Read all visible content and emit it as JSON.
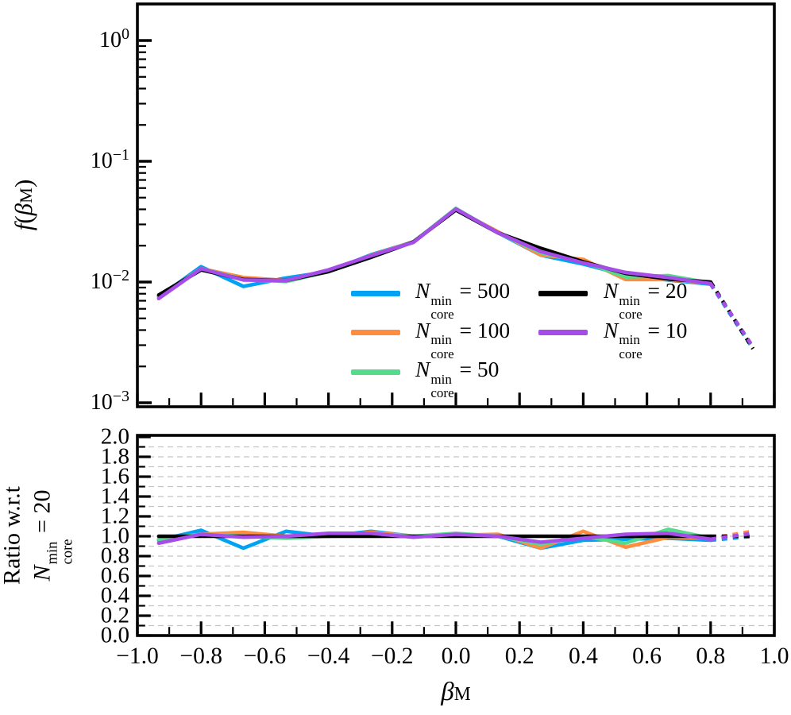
{
  "accent_colors": {
    "cyan": "#00A2F3",
    "orange": "#FF8D3F",
    "green": "#55DB8B",
    "black": "#000000",
    "purple": "#A64CE8",
    "grid": "#c4c4c4"
  },
  "labels": {
    "top_ylabel": {
      "f": "f",
      "open": "(",
      "beta": "β",
      "sub": "M",
      "close": ")"
    },
    "xlabel": {
      "beta": "β",
      "sub": "M"
    },
    "ratio_line1": "Ratio w.r.t",
    "ratio_line2": {
      "base": "N",
      "sup": "min",
      "sub": "core",
      "eq": "=",
      "value": "20"
    }
  },
  "axes": {
    "top_yticks": [
      {
        "base": "10",
        "exp": "0"
      },
      {
        "base": "10",
        "exp": "−1"
      },
      {
        "base": "10",
        "exp": "−2"
      },
      {
        "base": "10",
        "exp": "−3"
      }
    ],
    "bottom_yticks": [
      "2.0",
      "1.8",
      "1.6",
      "1.4",
      "1.2",
      "1.0",
      "0.8",
      "0.6",
      "0.4",
      "0.2",
      "0.0"
    ],
    "xticks": [
      "−1.0",
      "−0.8",
      "−0.6",
      "−0.4",
      "−0.2",
      "0.0",
      "0.2",
      "0.4",
      "0.6",
      "0.8",
      "1.0"
    ]
  },
  "legend": {
    "symbol": {
      "base": "N",
      "sup": "min",
      "sub": "core",
      "eq": "="
    },
    "items": [
      {
        "value": "500",
        "color": "#00A2F3"
      },
      {
        "value": "100",
        "color": "#FF8D3F"
      },
      {
        "value": "50",
        "color": "#55DB8B"
      },
      {
        "value": "20",
        "color": "#000000"
      },
      {
        "value": "10",
        "color": "#A64CE8"
      }
    ]
  },
  "chart_data": [
    {
      "type": "line",
      "panel": "top",
      "ylabel": "f(β_M)",
      "xlabel": "β_M (shared, labeled below bottom panel)",
      "yscale": "log",
      "ylim": [
        0.001,
        2
      ],
      "xlim": [
        -1,
        1
      ],
      "grid": false,
      "legend_position": "lower center, two columns",
      "dashed_from_index": 13,
      "x": [
        -0.933,
        -0.8,
        -0.667,
        -0.533,
        -0.4,
        -0.267,
        -0.133,
        0.0,
        0.133,
        0.267,
        0.4,
        0.533,
        0.667,
        0.8,
        0.933
      ],
      "series": [
        {
          "name": "N_core^min = 500",
          "color": "#00A2F3",
          "values": [
            0.0075,
            0.0134,
            0.0092,
            0.0108,
            0.0122,
            0.0168,
            0.0215,
            0.0399,
            0.0255,
            0.0167,
            0.0141,
            0.0114,
            0.0104,
            0.0096,
            0.0028
          ]
        },
        {
          "name": "N_core^min = 100",
          "color": "#FF8D3F",
          "values": [
            0.0076,
            0.0129,
            0.0109,
            0.0103,
            0.0122,
            0.0166,
            0.0215,
            0.0399,
            0.026,
            0.0167,
            0.0154,
            0.0105,
            0.0105,
            0.0098,
            0.0029
          ]
        },
        {
          "name": "N_core^min = 50",
          "color": "#55DB8B",
          "values": [
            0.0076,
            0.0129,
            0.0105,
            0.0101,
            0.0122,
            0.0163,
            0.0215,
            0.0407,
            0.0255,
            0.0175,
            0.0147,
            0.011,
            0.0113,
            0.0098,
            0.0029
          ]
        },
        {
          "name": "N_core^min = 20",
          "color": "#000000",
          "values": [
            0.0078,
            0.0126,
            0.0105,
            0.0103,
            0.0122,
            0.016,
            0.0215,
            0.0395,
            0.0255,
            0.019,
            0.0147,
            0.0118,
            0.0106,
            0.01,
            0.0028
          ]
        },
        {
          "name": "N_core^min = 10",
          "color": "#A64CE8",
          "values": [
            0.0073,
            0.0129,
            0.0104,
            0.0103,
            0.0126,
            0.0165,
            0.0213,
            0.0403,
            0.0255,
            0.0179,
            0.0144,
            0.012,
            0.0109,
            0.0097,
            0.0029
          ]
        }
      ]
    },
    {
      "type": "line",
      "panel": "bottom",
      "ylabel": "Ratio w.r.t N_core^min = 20",
      "ylim": [
        0.0,
        2.0
      ],
      "xlim": [
        -1,
        1
      ],
      "grid": "horizontal dashed every 0.1",
      "dashed_from_index": 13,
      "x": [
        -0.933,
        -0.8,
        -0.667,
        -0.533,
        -0.4,
        -0.267,
        -0.133,
        0.0,
        0.133,
        0.267,
        0.4,
        0.533,
        0.667,
        0.8,
        0.933
      ],
      "series": [
        {
          "name": "N_core^min = 500",
          "color": "#00A2F3",
          "values": [
            0.96,
            1.06,
            0.88,
            1.05,
            1.0,
            1.05,
            1.0,
            1.01,
            1.0,
            0.88,
            0.96,
            0.97,
            0.98,
            0.96,
            1.0
          ]
        },
        {
          "name": "N_core^min = 100",
          "color": "#FF8D3F",
          "values": [
            0.97,
            1.02,
            1.04,
            1.0,
            1.0,
            1.04,
            1.0,
            1.01,
            1.02,
            0.88,
            1.05,
            0.89,
            0.99,
            0.98,
            1.05
          ]
        },
        {
          "name": "N_core^min = 50",
          "color": "#55DB8B",
          "values": [
            0.97,
            1.02,
            1.0,
            0.98,
            1.0,
            1.02,
            1.0,
            1.03,
            1.0,
            0.92,
            1.0,
            0.93,
            1.07,
            0.98,
            1.02
          ]
        },
        {
          "name": "N_core^min = 20",
          "color": "#000000",
          "values": [
            1.0,
            1.0,
            1.0,
            1.0,
            1.0,
            1.0,
            1.0,
            1.0,
            1.0,
            1.0,
            1.0,
            1.0,
            1.0,
            1.0,
            1.0
          ]
        },
        {
          "name": "N_core^min = 10",
          "color": "#A64CE8",
          "values": [
            0.93,
            1.02,
            0.99,
            1.0,
            1.03,
            1.03,
            0.99,
            1.02,
            1.0,
            0.94,
            0.98,
            1.02,
            1.03,
            0.97,
            1.03
          ]
        }
      ]
    }
  ]
}
